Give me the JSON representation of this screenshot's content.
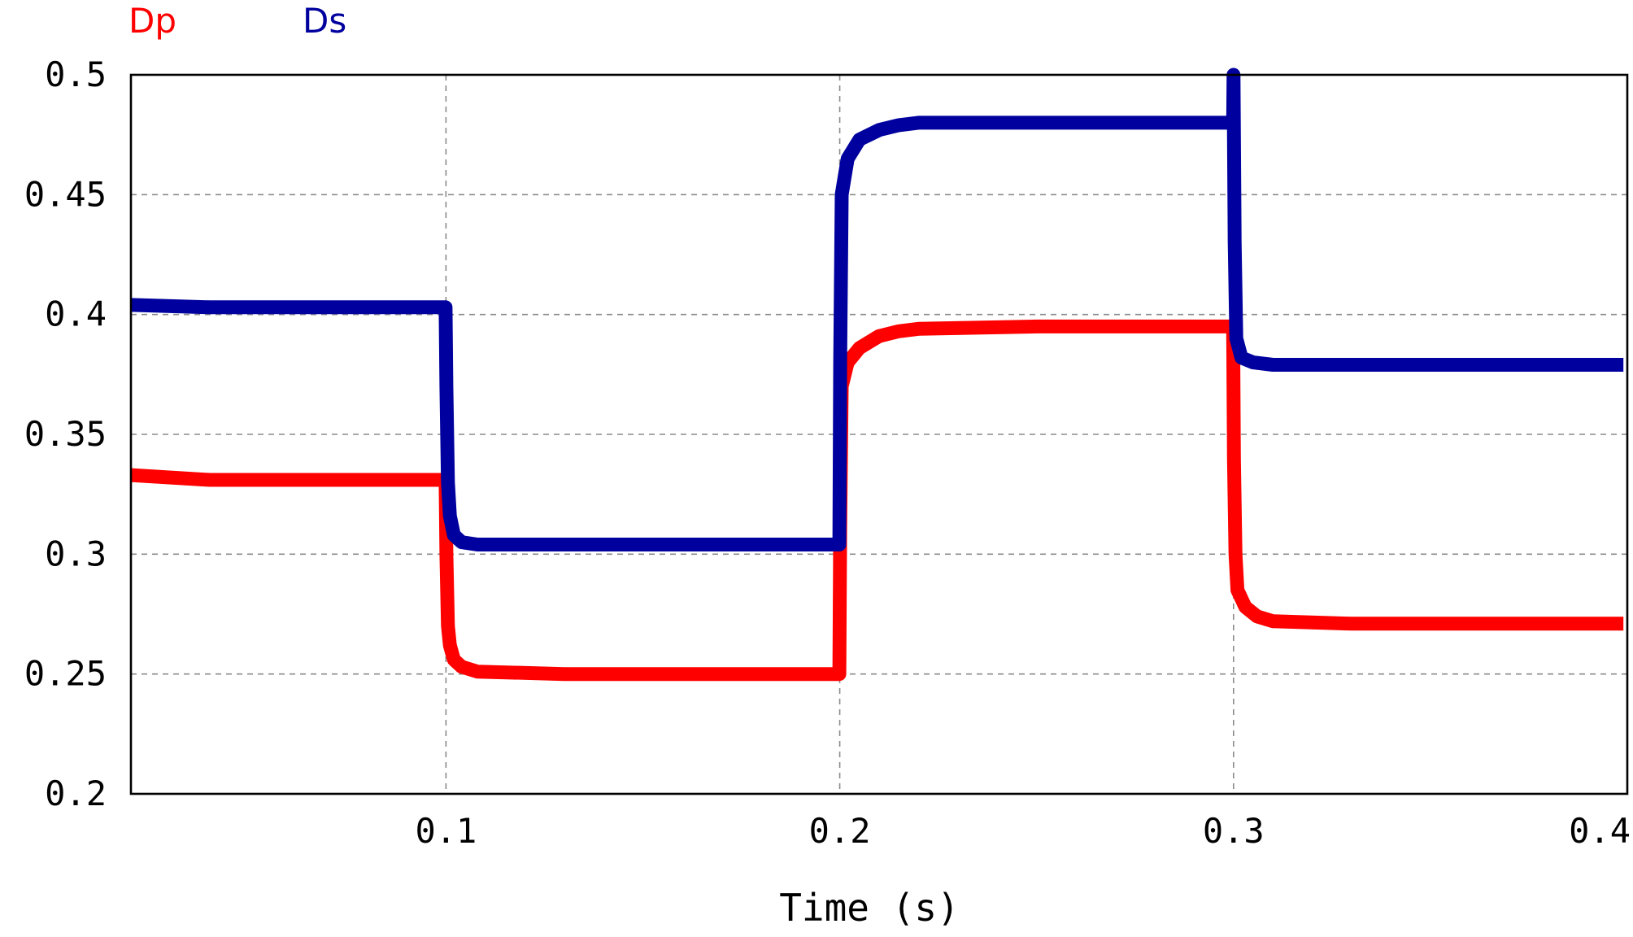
{
  "chart_data": {
    "type": "line",
    "title": "",
    "xlabel": "Time (s)",
    "ylabel": "",
    "xlim": [
      0.02,
      0.4
    ],
    "ylim": [
      0.2,
      0.5
    ],
    "grid": true,
    "legend_placement": "top-left",
    "x_ticks": [
      0.1,
      0.2,
      0.3,
      0.4
    ],
    "x_tick_labels": [
      "0.1",
      "0.2",
      "0.3",
      "0.4"
    ],
    "y_ticks": [
      0.2,
      0.25,
      0.3,
      0.35,
      0.4,
      0.45,
      0.5
    ],
    "y_tick_labels": [
      "0.2",
      "0.25",
      "0.3",
      "0.35",
      "0.4",
      "0.45",
      "0.5"
    ],
    "series": [
      {
        "name": "Dp",
        "color": "#ff0000",
        "points": [
          [
            0.02,
            0.333
          ],
          [
            0.04,
            0.331
          ],
          [
            0.06,
            0.331
          ],
          [
            0.08,
            0.331
          ],
          [
            0.0999,
            0.331
          ],
          [
            0.1001,
            0.3
          ],
          [
            0.1005,
            0.27
          ],
          [
            0.101,
            0.262
          ],
          [
            0.102,
            0.256
          ],
          [
            0.104,
            0.253
          ],
          [
            0.108,
            0.251
          ],
          [
            0.13,
            0.25
          ],
          [
            0.15,
            0.25
          ],
          [
            0.18,
            0.25
          ],
          [
            0.1999,
            0.25
          ],
          [
            0.2001,
            0.31
          ],
          [
            0.2005,
            0.37
          ],
          [
            0.202,
            0.38
          ],
          [
            0.205,
            0.386
          ],
          [
            0.21,
            0.391
          ],
          [
            0.215,
            0.393
          ],
          [
            0.22,
            0.394
          ],
          [
            0.25,
            0.395
          ],
          [
            0.28,
            0.395
          ],
          [
            0.2999,
            0.395
          ],
          [
            0.3001,
            0.34
          ],
          [
            0.3005,
            0.3
          ],
          [
            0.301,
            0.285
          ],
          [
            0.303,
            0.278
          ],
          [
            0.306,
            0.274
          ],
          [
            0.31,
            0.272
          ],
          [
            0.33,
            0.271
          ],
          [
            0.36,
            0.271
          ],
          [
            0.38,
            0.271
          ],
          [
            0.399,
            0.271
          ]
        ]
      },
      {
        "name": "Ds",
        "color": "#00009e",
        "points": [
          [
            0.02,
            0.404
          ],
          [
            0.04,
            0.403
          ],
          [
            0.06,
            0.403
          ],
          [
            0.08,
            0.403
          ],
          [
            0.0999,
            0.403
          ],
          [
            0.1001,
            0.37
          ],
          [
            0.1005,
            0.33
          ],
          [
            0.101,
            0.316
          ],
          [
            0.102,
            0.308
          ],
          [
            0.104,
            0.305
          ],
          [
            0.108,
            0.304
          ],
          [
            0.13,
            0.304
          ],
          [
            0.15,
            0.304
          ],
          [
            0.18,
            0.304
          ],
          [
            0.1999,
            0.304
          ],
          [
            0.2001,
            0.38
          ],
          [
            0.2005,
            0.45
          ],
          [
            0.202,
            0.465
          ],
          [
            0.205,
            0.473
          ],
          [
            0.21,
            0.477
          ],
          [
            0.215,
            0.479
          ],
          [
            0.22,
            0.48
          ],
          [
            0.25,
            0.48
          ],
          [
            0.28,
            0.48
          ],
          [
            0.2999,
            0.48
          ],
          [
            0.3,
            0.5
          ],
          [
            0.3003,
            0.43
          ],
          [
            0.3007,
            0.39
          ],
          [
            0.302,
            0.382
          ],
          [
            0.305,
            0.38
          ],
          [
            0.31,
            0.379
          ],
          [
            0.33,
            0.379
          ],
          [
            0.36,
            0.379
          ],
          [
            0.38,
            0.379
          ],
          [
            0.399,
            0.379
          ]
        ]
      }
    ]
  }
}
